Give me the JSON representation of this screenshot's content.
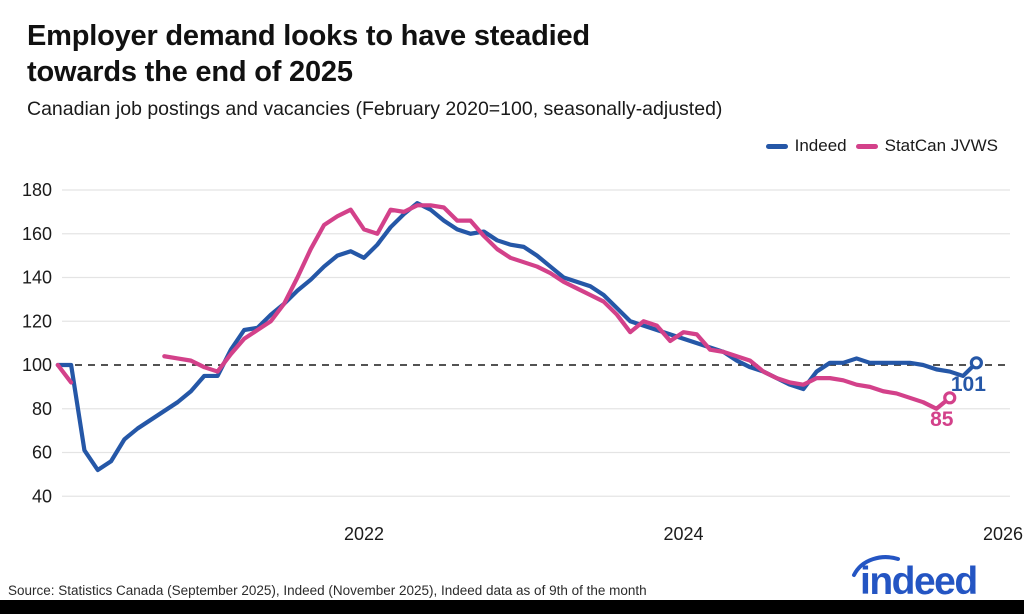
{
  "header": {
    "title": "Employer demand looks to have steadied\ntowards the end of 2025",
    "subtitle": "Canadian job postings and vacancies (February 2020=100, seasonally-adjusted)"
  },
  "legend": [
    {
      "label": "Indeed",
      "color": "#2557a7"
    },
    {
      "label": "StatCan JVWS",
      "color": "#d3418a"
    }
  ],
  "footer": {
    "source": "Source: Statistics Canada (September 2025), Indeed (November 2025), Indeed data as of 9th of the month"
  },
  "logo": {
    "text": "indeed",
    "color": "#2455c3"
  },
  "chart_data": {
    "type": "line",
    "title": "Employer demand looks to have steadied towards the end of 2025",
    "subtitle": "Canadian job postings and vacancies (February 2020=100, seasonally-adjusted)",
    "x_unit": "month",
    "x_tick_labels": [
      "2022",
      "2024",
      "2026"
    ],
    "y_ticks": [
      40,
      60,
      80,
      100,
      120,
      140,
      160,
      180
    ],
    "ylim": [
      33,
      186
    ],
    "baseline": {
      "value": 100,
      "style": "dashed"
    },
    "grid": true,
    "legend_position": "top-right",
    "series": [
      {
        "name": "Indeed",
        "color": "#2557a7",
        "start": "2020-02",
        "end": "2025-11",
        "end_label": "101",
        "values": [
          100,
          100,
          61,
          52,
          56,
          66,
          71,
          75,
          79,
          83,
          88,
          95,
          95,
          107,
          116,
          117,
          123,
          128,
          134,
          139,
          145,
          150,
          152,
          149,
          155,
          163,
          169,
          174,
          171,
          166,
          162,
          160,
          161,
          157,
          155,
          154,
          150,
          145,
          140,
          138,
          136,
          132,
          126,
          120,
          118,
          116,
          114,
          112,
          110,
          108,
          106,
          102,
          99,
          97,
          94,
          91,
          89,
          97,
          101,
          101,
          103,
          101,
          101,
          101,
          101,
          100,
          98,
          97,
          95,
          101
        ]
      },
      {
        "name": "StatCan JVWS",
        "color": "#d3418a",
        "start": "2020-02",
        "end": "2025-09",
        "end_label": "85",
        "values": [
          100,
          92,
          null,
          null,
          null,
          null,
          null,
          null,
          104,
          103,
          102,
          99,
          97,
          105,
          112,
          116,
          120,
          128,
          140,
          153,
          164,
          168,
          171,
          162,
          160,
          171,
          170,
          173,
          173,
          172,
          166,
          166,
          159,
          153,
          149,
          147,
          145,
          142,
          138,
          135,
          132,
          129,
          123,
          115,
          120,
          118,
          111,
          115,
          114,
          107,
          106,
          104,
          102,
          97,
          94,
          92,
          91,
          94,
          94,
          93,
          91,
          90,
          88,
          87,
          85,
          83,
          80,
          85
        ]
      }
    ]
  }
}
